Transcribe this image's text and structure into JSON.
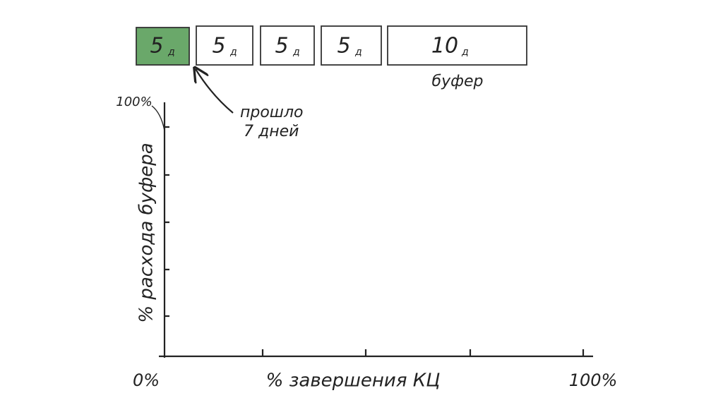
{
  "blocks": [
    {
      "value": "5",
      "unit": "д"
    },
    {
      "value": "5",
      "unit": "д"
    },
    {
      "value": "5",
      "unit": "д"
    },
    {
      "value": "5",
      "unit": "д"
    },
    {
      "value": "10",
      "unit": "д"
    }
  ],
  "buffer_label": "буфер",
  "annotation": {
    "line1": "прошло",
    "line2": "7 дней"
  },
  "axes": {
    "y_label": "% расхода буфера",
    "y_top": "100%",
    "origin": "0%",
    "x_label": "% завершения КЦ",
    "x_right": "100%"
  }
}
